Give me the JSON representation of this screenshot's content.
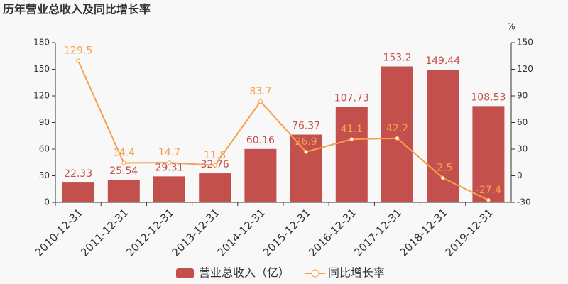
{
  "chart_data": {
    "type": "bar",
    "title": "历年营业总收入及同比增长率",
    "categories": [
      "2010-12-31",
      "2011-12-31",
      "2012-12-31",
      "2013-12-31",
      "2014-12-31",
      "2015-12-31",
      "2016-12-31",
      "2017-12-31",
      "2018-12-31",
      "2019-12-31"
    ],
    "series": [
      {
        "name": "营业总收入（亿）",
        "type": "bar",
        "color": "#c4504e",
        "values": [
          22.33,
          25.54,
          29.31,
          32.76,
          60.16,
          76.37,
          107.73,
          153.2,
          149.44,
          108.53
        ]
      },
      {
        "name": "同比增长率",
        "type": "line",
        "axis": "y2",
        "color": "#f5a04a",
        "values": [
          129.5,
          14.4,
          14.7,
          11.8,
          83.7,
          26.9,
          41.1,
          42.2,
          -2.5,
          -27.4
        ]
      }
    ],
    "ylim": [
      0,
      180
    ],
    "yticks": [
      0,
      30,
      60,
      90,
      120,
      150,
      180
    ],
    "y2lim": [
      -30,
      150
    ],
    "y2ticks": [
      -30,
      0,
      30,
      60,
      90,
      120,
      150
    ],
    "y2_label": "%",
    "grid": false,
    "legend": "bottom"
  }
}
